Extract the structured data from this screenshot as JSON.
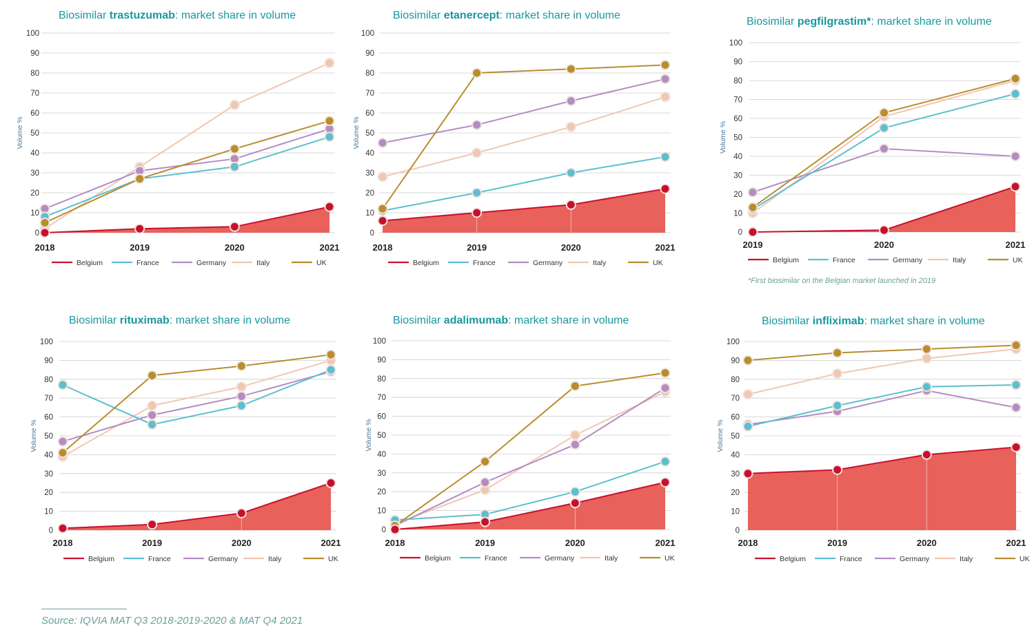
{
  "colors": {
    "Belgium": "#c8102e",
    "Belgium_fill": "#e8615b",
    "France": "#5bbfd0",
    "Germany": "#b48cc4",
    "Italy": "#f0c7b1",
    "UK": "#b88d2e",
    "title": "#17989e",
    "grid": "#cccccc"
  },
  "y_axis_label": "Volume %",
  "legend": [
    "Belgium",
    "France",
    "Germany",
    "Italy",
    "UK"
  ],
  "footnote": "*First biosimilar on the Belgian market launched in 2019",
  "source": "Source: IQVIA MAT Q3 2018-2019-2020 & MAT Q4 2021",
  "chart_data": [
    {
      "type": "line",
      "title_prefix": "Biosimilar ",
      "title_drug": "trastuzumab",
      "title_suffix": ": market share in volume",
      "ylabel": "Volume %",
      "ylim": [
        0,
        100
      ],
      "yticks": [
        0,
        10,
        20,
        30,
        40,
        50,
        60,
        70,
        80,
        90,
        100
      ],
      "x": [
        "2018",
        "2019",
        "2020",
        "2021"
      ],
      "area_series": "Belgium",
      "series": [
        {
          "name": "Belgium",
          "values": [
            0,
            2,
            3,
            13
          ]
        },
        {
          "name": "France",
          "values": [
            8,
            27,
            33,
            48
          ]
        },
        {
          "name": "Germany",
          "values": [
            12,
            31,
            37,
            52
          ]
        },
        {
          "name": "Italy",
          "values": [
            2,
            33,
            64,
            85
          ]
        },
        {
          "name": "UK",
          "values": [
            5,
            27,
            42,
            56
          ]
        }
      ]
    },
    {
      "type": "line",
      "title_prefix": "Biosimilar ",
      "title_drug": "etanercept",
      "title_suffix": ": market share in volume",
      "ylabel": "Volume %",
      "ylim": [
        0,
        100
      ],
      "yticks": [
        0,
        10,
        20,
        30,
        40,
        50,
        60,
        70,
        80,
        90,
        100
      ],
      "x": [
        "2018",
        "2019",
        "2020",
        "2021"
      ],
      "area_series": "Belgium",
      "series": [
        {
          "name": "Belgium",
          "values": [
            6,
            10,
            14,
            22
          ]
        },
        {
          "name": "France",
          "values": [
            11,
            20,
            30,
            38
          ]
        },
        {
          "name": "Germany",
          "values": [
            45,
            54,
            66,
            77
          ]
        },
        {
          "name": "Italy",
          "values": [
            28,
            40,
            53,
            68
          ]
        },
        {
          "name": "UK",
          "values": [
            12,
            80,
            82,
            84
          ]
        }
      ]
    },
    {
      "type": "line",
      "title_prefix": "Biosimilar ",
      "title_drug": "pegfilgrastim*",
      "title_suffix": ": market share in volume",
      "ylabel": "Volume %",
      "ylim": [
        0,
        100
      ],
      "yticks": [
        0,
        10,
        20,
        30,
        40,
        50,
        60,
        70,
        80,
        90,
        100
      ],
      "x": [
        "2019",
        "2020",
        "2021"
      ],
      "area_series": "Belgium",
      "series": [
        {
          "name": "Belgium",
          "values": [
            0,
            1,
            24
          ]
        },
        {
          "name": "France",
          "values": [
            12,
            55,
            73
          ]
        },
        {
          "name": "Germany",
          "values": [
            21,
            44,
            40
          ]
        },
        {
          "name": "Italy",
          "values": [
            10,
            61,
            80
          ]
        },
        {
          "name": "UK",
          "values": [
            13,
            63,
            81
          ]
        }
      ]
    },
    {
      "type": "line",
      "title_prefix": "Biosimilar ",
      "title_drug": "rituximab",
      "title_suffix": ": market share in volume",
      "ylabel": "Volume %",
      "ylim": [
        0,
        100
      ],
      "yticks": [
        0,
        10,
        20,
        30,
        40,
        50,
        60,
        70,
        80,
        90,
        100
      ],
      "x": [
        "2018",
        "2019",
        "2020",
        "2021"
      ],
      "area_series": "Belgium",
      "series": [
        {
          "name": "Belgium",
          "values": [
            1,
            3,
            9,
            25
          ]
        },
        {
          "name": "France",
          "values": [
            77,
            56,
            66,
            85
          ]
        },
        {
          "name": "Germany",
          "values": [
            47,
            61,
            71,
            84
          ]
        },
        {
          "name": "Italy",
          "values": [
            39,
            66,
            76,
            90
          ]
        },
        {
          "name": "UK",
          "values": [
            41,
            82,
            87,
            93
          ]
        }
      ]
    },
    {
      "type": "line",
      "title_prefix": "Biosimilar ",
      "title_drug": "adalimumab",
      "title_suffix": ": market share in volume",
      "ylabel": "Volume %",
      "ylim": [
        0,
        100
      ],
      "yticks": [
        0,
        10,
        20,
        30,
        40,
        50,
        60,
        70,
        80,
        90,
        100
      ],
      "x": [
        "2018",
        "2019",
        "2020",
        "2021"
      ],
      "area_series": "Belgium",
      "series": [
        {
          "name": "Belgium",
          "values": [
            0,
            4,
            14,
            25
          ]
        },
        {
          "name": "France",
          "values": [
            5,
            8,
            20,
            36
          ]
        },
        {
          "name": "Germany",
          "values": [
            2,
            25,
            45,
            75
          ]
        },
        {
          "name": "Italy",
          "values": [
            3,
            21,
            50,
            73
          ]
        },
        {
          "name": "UK",
          "values": [
            2,
            36,
            76,
            83
          ]
        }
      ]
    },
    {
      "type": "line",
      "title_prefix": "Biosimilar ",
      "title_drug": "infliximab",
      "title_suffix": ": market share in volume",
      "ylabel": "Volume %",
      "ylim": [
        0,
        100
      ],
      "yticks": [
        0,
        10,
        20,
        30,
        40,
        50,
        60,
        70,
        80,
        90,
        100
      ],
      "x": [
        "2018",
        "2019",
        "2020",
        "2021"
      ],
      "area_series": "Belgium",
      "series": [
        {
          "name": "Belgium",
          "values": [
            30,
            32,
            40,
            44
          ]
        },
        {
          "name": "France",
          "values": [
            55,
            66,
            76,
            77
          ]
        },
        {
          "name": "Germany",
          "values": [
            56,
            63,
            74,
            65
          ]
        },
        {
          "name": "Italy",
          "values": [
            72,
            83,
            91,
            96
          ]
        },
        {
          "name": "UK",
          "values": [
            90,
            94,
            96,
            98
          ]
        }
      ]
    }
  ]
}
